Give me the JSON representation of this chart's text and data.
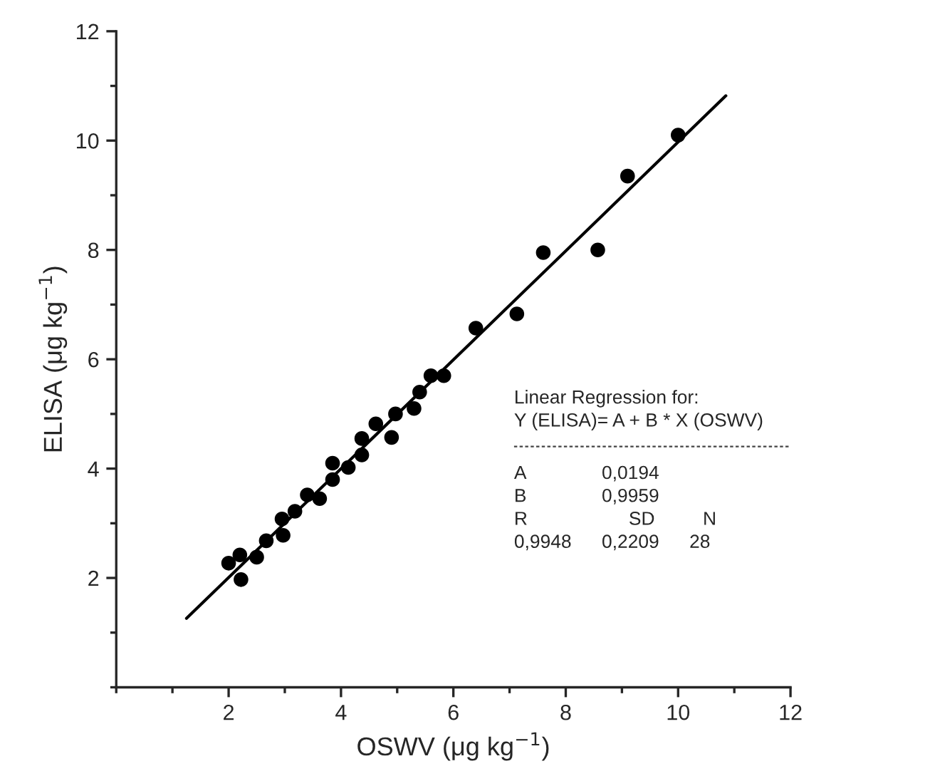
{
  "chart_data": {
    "type": "scatter",
    "xlabel": "OSWV (μg kg$^{−1}$)",
    "ylabel": "ELISA (μg kg$^{−1}$)",
    "xlim": [
      0,
      12
    ],
    "ylim": [
      0,
      12
    ],
    "xticks": [
      2,
      4,
      6,
      8,
      10,
      12
    ],
    "yticks": [
      2,
      4,
      6,
      8,
      10,
      12
    ],
    "grid": false,
    "legend": false,
    "marker": "circle",
    "series": [
      {
        "color": "#000000",
        "x": [
          2.0,
          2.2,
          2.22,
          2.5,
          2.67,
          2.95,
          2.97,
          3.18,
          3.4,
          3.62,
          3.85,
          3.85,
          4.13,
          4.37,
          4.37,
          4.62,
          4.9,
          4.97,
          5.3,
          5.4,
          5.6,
          5.83,
          6.4,
          7.13,
          7.6,
          8.57,
          9.1,
          10.0
        ],
        "values": [
          2.27,
          2.42,
          1.97,
          2.38,
          2.68,
          3.08,
          2.78,
          3.22,
          3.52,
          3.45,
          4.1,
          3.8,
          4.02,
          4.55,
          4.25,
          4.82,
          4.57,
          5.0,
          5.1,
          5.4,
          5.7,
          5.7,
          6.57,
          6.83,
          7.95,
          8.0,
          9.35,
          10.1
        ]
      },
      {
        "type": "line",
        "color": "#000000",
        "marker": "none",
        "x": [
          1.25,
          10.85
        ],
        "values": [
          1.26,
          10.82
        ]
      }
    ],
    "annotations": [
      "Linear Regression for:",
      "Y (ELISA)= A + B * X (OSWV)",
      "A",
      "0,0194",
      "B",
      "0,9959",
      "R",
      "SD",
      "N",
      "0,9948",
      "0,2209",
      "28"
    ]
  }
}
